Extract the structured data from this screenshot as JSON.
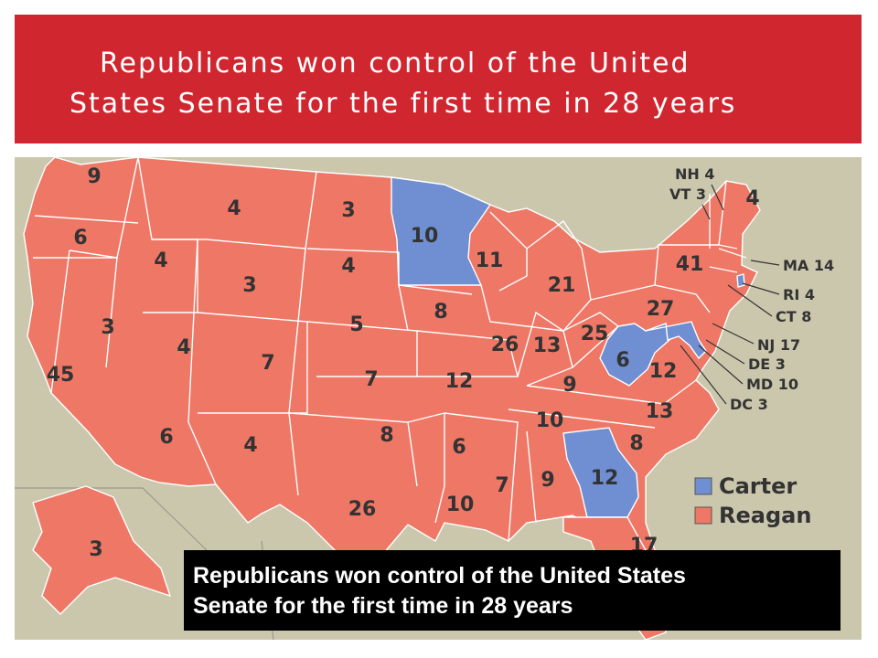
{
  "title": {
    "line1": "Republicans won control of the United",
    "line2": "States Senate for the first time in 28 years"
  },
  "caption": {
    "line1": "Republicans won control of the United States",
    "line2": "Senate for the first time in 28 years"
  },
  "colors": {
    "banner": "#d0262f",
    "reagan": "#ee7766",
    "carter": "#6f8fd2",
    "ocean": "#cbc7ad"
  },
  "legend": {
    "carter": "Carter",
    "reagan": "Reagan"
  },
  "states": {
    "wa": "9",
    "or": "6",
    "ca": "45",
    "nv": "3",
    "id": "4",
    "mt": "4",
    "wy": "3",
    "ut": "4",
    "co": "7",
    "az": "6",
    "nm": "4",
    "nd": "3",
    "sd": "4",
    "ne": "5",
    "ks": "7",
    "ok": "8",
    "tx": "26",
    "mn": "10",
    "ia": "8",
    "mo": "12",
    "ar": "6",
    "la": "10",
    "wi": "11",
    "il": "26",
    "mi": "21",
    "in": "13",
    "oh": "25",
    "ky": "9",
    "tn": "10",
    "ms": "7",
    "al": "9",
    "ga": "12",
    "fl": "17",
    "sc": "8",
    "nc": "13",
    "va": "12",
    "wv": "6",
    "pa": "27",
    "ny": "41",
    "me": "4",
    "ak": "3"
  },
  "callouts": {
    "nh": "NH 4",
    "vt": "VT 3",
    "ma": "MA 14",
    "ri": "RI 4",
    "ct": "CT 8",
    "nj": "NJ 17",
    "de": "DE 3",
    "md": "MD 10",
    "dc": "DC 3"
  }
}
